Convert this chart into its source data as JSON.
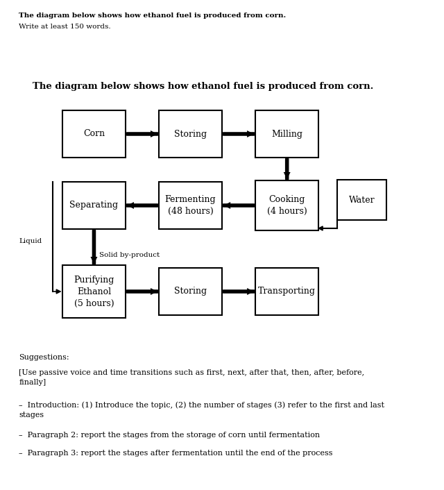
{
  "title_top_bold": "The diagram below shows how ethanol fuel is produced from corn.",
  "title_top_normal": "Write at least 150 words.",
  "diagram_title": "The diagram below shows how ethanol fuel is produced from corn.",
  "bg_color": "#ffffff",
  "box_edge_color": "#000000",
  "box_face_color": "#ffffff",
  "text_color": "#000000",
  "arrow_color": "#000000",
  "suggestions_title": "Suggestions:",
  "suggestions_text": "[Use passive voice and time transitions such as first, next, after that, then, after, before,\nfinally]",
  "bullet1": "–  Introduction: (1) Introduce the topic, (2) the number of stages (3) refer to the first and last\nstages",
  "bullet2": "–  Paragraph 2: report the stages from the storage of corn until fermentation",
  "bullet3": "–  Paragraph 3: report the stages after fermentation until the end of the process"
}
